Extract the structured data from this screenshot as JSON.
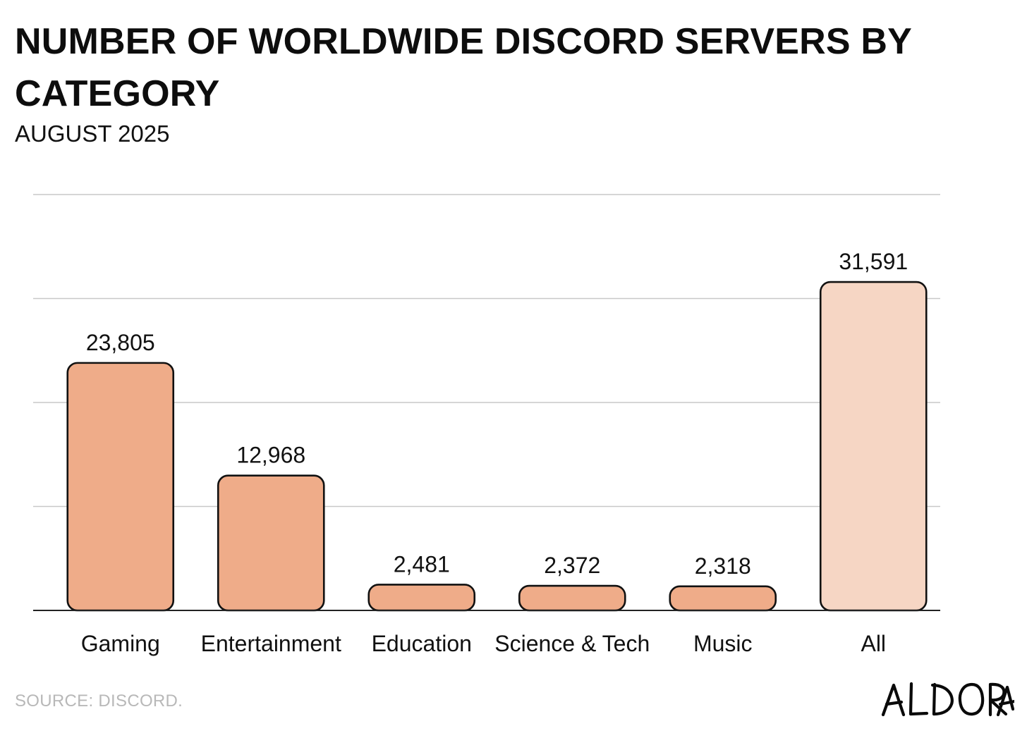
{
  "header": {
    "title": "NUMBER OF WORLDWIDE DISCORD SERVERS BY CATEGORY",
    "subtitle": "AUGUST 2025"
  },
  "footer": {
    "source": "SOURCE: DISCORD.",
    "brand": "ALDORA"
  },
  "colors": {
    "bar": "#efac89",
    "bar_total": "#f6d6c4",
    "bar_stroke": "#111111",
    "gridline": "#c8c8c8",
    "baseline": "#222222"
  },
  "chart_data": {
    "type": "bar",
    "title": "NUMBER OF WORLDWIDE DISCORD SERVERS BY CATEGORY",
    "subtitle": "AUGUST 2025",
    "categories": [
      "Gaming",
      "Entertainment",
      "Education",
      "Science & Tech",
      "Music",
      "All"
    ],
    "values": [
      23805,
      12968,
      2481,
      2372,
      2318,
      31591
    ],
    "value_labels": [
      "23,805",
      "12,968",
      "2,481",
      "2,372",
      "2,318",
      "31,591"
    ],
    "highlight_category": "All",
    "xlabel": "",
    "ylabel": "",
    "ylim": [
      0,
      40000
    ],
    "gridlines": [
      10000,
      20000,
      30000,
      40000
    ],
    "grid": true,
    "y_tick_labels_shown": false
  }
}
